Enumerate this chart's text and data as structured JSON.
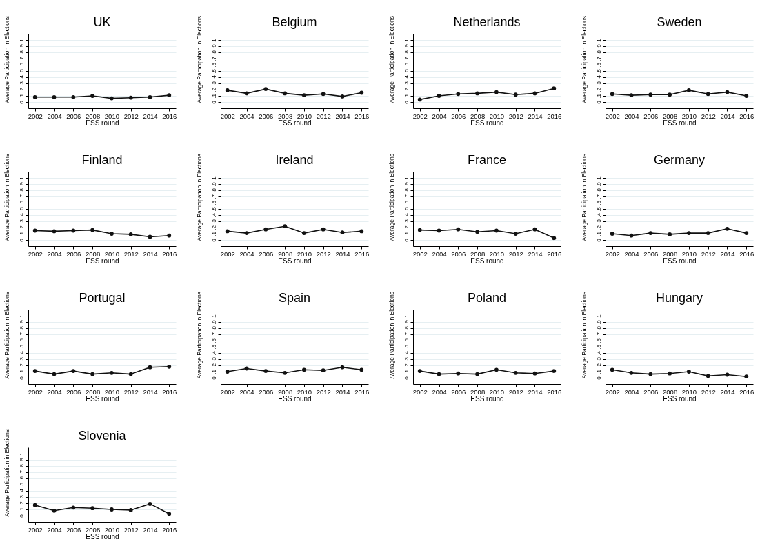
{
  "chart_data": [
    {
      "type": "line",
      "title": "UK",
      "xlabel": "ESS round",
      "ylabel": "Average Participation in Elections",
      "x": [
        2002,
        2004,
        2006,
        2008,
        2010,
        2012,
        2014,
        2016
      ],
      "series": [
        {
          "color": "#111111",
          "values": [
            0.08,
            0.08,
            0.08,
            0.1,
            0.06,
            0.07,
            0.08,
            0.11
          ]
        }
      ],
      "xlim": [
        2001.3,
        2016.7
      ],
      "ylim": [
        -0.1,
        1.1
      ],
      "xticks": [
        2002,
        2004,
        2006,
        2008,
        2010,
        2012,
        2014,
        2016
      ],
      "yticks": [
        0,
        {
          "value": 0.1,
          "label": ".1"
        },
        {
          "value": 0.2,
          "label": ".2"
        },
        {
          "value": 0.3,
          "label": ".3"
        },
        {
          "value": 0.4,
          "label": ".4"
        },
        {
          "value": 0.5,
          "label": ".5"
        },
        {
          "value": 0.6,
          "label": ".6"
        },
        {
          "value": 0.7,
          "label": ".7"
        },
        {
          "value": 0.8,
          "label": ".8"
        },
        {
          "value": 0.9,
          "label": ".9"
        },
        1
      ],
      "grid": "y",
      "marker": "circle",
      "line_style": "solid"
    },
    {
      "type": "line",
      "title": "Belgium",
      "xlabel": "ESS round",
      "ylabel": "Average Participation in Elections",
      "x": [
        2002,
        2004,
        2006,
        2008,
        2010,
        2012,
        2014,
        2016
      ],
      "series": [
        {
          "color": "#111111",
          "values": [
            0.19,
            0.14,
            0.21,
            0.14,
            0.11,
            0.13,
            0.09,
            0.15
          ]
        }
      ],
      "xlim": [
        2001.3,
        2016.7
      ],
      "ylim": [
        -0.1,
        1.1
      ],
      "xticks": [
        2002,
        2004,
        2006,
        2008,
        2010,
        2012,
        2014,
        2016
      ],
      "yticks": [
        0,
        {
          "value": 0.1,
          "label": ".1"
        },
        {
          "value": 0.2,
          "label": ".2"
        },
        {
          "value": 0.3,
          "label": ".3"
        },
        {
          "value": 0.4,
          "label": ".4"
        },
        {
          "value": 0.5,
          "label": ".5"
        },
        {
          "value": 0.6,
          "label": ".6"
        },
        {
          "value": 0.7,
          "label": ".7"
        },
        {
          "value": 0.8,
          "label": ".8"
        },
        {
          "value": 0.9,
          "label": ".9"
        },
        1
      ],
      "grid": "y",
      "marker": "circle",
      "line_style": "solid"
    },
    {
      "type": "line",
      "title": "Netherlands",
      "xlabel": "ESS round",
      "ylabel": "Average Participation in Elections",
      "x": [
        2002,
        2004,
        2006,
        2008,
        2010,
        2012,
        2014,
        2016
      ],
      "series": [
        {
          "color": "#111111",
          "values": [
            0.04,
            0.1,
            0.13,
            0.14,
            0.16,
            0.12,
            0.14,
            0.22
          ]
        }
      ],
      "xlim": [
        2001.3,
        2016.7
      ],
      "ylim": [
        -0.1,
        1.1
      ],
      "xticks": [
        2002,
        2004,
        2006,
        2008,
        2010,
        2012,
        2014,
        2016
      ],
      "yticks": [
        0,
        {
          "value": 0.1,
          "label": ".1"
        },
        {
          "value": 0.2,
          "label": ".2"
        },
        {
          "value": 0.3,
          "label": ".3"
        },
        {
          "value": 0.4,
          "label": ".4"
        },
        {
          "value": 0.5,
          "label": ".5"
        },
        {
          "value": 0.6,
          "label": ".6"
        },
        {
          "value": 0.7,
          "label": ".7"
        },
        {
          "value": 0.8,
          "label": ".8"
        },
        {
          "value": 0.9,
          "label": ".9"
        },
        1
      ],
      "grid": "y",
      "marker": "circle",
      "line_style": "solid"
    },
    {
      "type": "line",
      "title": "Sweden",
      "xlabel": "ESS round",
      "ylabel": "Average Participation in Elections",
      "x": [
        2002,
        2004,
        2006,
        2008,
        2010,
        2012,
        2014,
        2016
      ],
      "series": [
        {
          "color": "#111111",
          "values": [
            0.13,
            0.11,
            0.12,
            0.12,
            0.19,
            0.13,
            0.16,
            0.1
          ]
        }
      ],
      "xlim": [
        2001.3,
        2016.7
      ],
      "ylim": [
        -0.1,
        1.1
      ],
      "xticks": [
        2002,
        2004,
        2006,
        2008,
        2010,
        2012,
        2014,
        2016
      ],
      "yticks": [
        0,
        {
          "value": 0.1,
          "label": ".1"
        },
        {
          "value": 0.2,
          "label": ".2"
        },
        {
          "value": 0.3,
          "label": ".3"
        },
        {
          "value": 0.4,
          "label": ".4"
        },
        {
          "value": 0.5,
          "label": ".5"
        },
        {
          "value": 0.6,
          "label": ".6"
        },
        {
          "value": 0.7,
          "label": ".7"
        },
        {
          "value": 0.8,
          "label": ".8"
        },
        {
          "value": 0.9,
          "label": ".9"
        },
        1
      ],
      "grid": "y",
      "marker": "circle",
      "line_style": "solid"
    },
    {
      "type": "line",
      "title": "Finland",
      "xlabel": "ESS round",
      "ylabel": "Average Participation in Elections",
      "x": [
        2002,
        2004,
        2006,
        2008,
        2010,
        2012,
        2014,
        2016
      ],
      "series": [
        {
          "color": "#111111",
          "values": [
            0.15,
            0.14,
            0.15,
            0.16,
            0.1,
            0.09,
            0.05,
            0.07
          ]
        }
      ],
      "xlim": [
        2001.3,
        2016.7
      ],
      "ylim": [
        -0.1,
        1.1
      ],
      "xticks": [
        2002,
        2004,
        2006,
        2008,
        2010,
        2012,
        2014,
        2016
      ],
      "yticks": [
        0,
        {
          "value": 0.1,
          "label": ".1"
        },
        {
          "value": 0.2,
          "label": ".2"
        },
        {
          "value": 0.3,
          "label": ".3"
        },
        {
          "value": 0.4,
          "label": ".4"
        },
        {
          "value": 0.5,
          "label": ".5"
        },
        {
          "value": 0.6,
          "label": ".6"
        },
        {
          "value": 0.7,
          "label": ".7"
        },
        {
          "value": 0.8,
          "label": ".8"
        },
        {
          "value": 0.9,
          "label": ".9"
        },
        1
      ],
      "grid": "y",
      "marker": "circle",
      "line_style": "solid"
    },
    {
      "type": "line",
      "title": "Ireland",
      "xlabel": "ESS round",
      "ylabel": "Average Participation in Elections",
      "x": [
        2002,
        2004,
        2006,
        2008,
        2010,
        2012,
        2014,
        2016
      ],
      "series": [
        {
          "color": "#111111",
          "values": [
            0.14,
            0.11,
            0.17,
            0.22,
            0.11,
            0.17,
            0.12,
            0.14
          ]
        }
      ],
      "xlim": [
        2001.3,
        2016.7
      ],
      "ylim": [
        -0.1,
        1.1
      ],
      "xticks": [
        2002,
        2004,
        2006,
        2008,
        2010,
        2012,
        2014,
        2016
      ],
      "yticks": [
        0,
        {
          "value": 0.1,
          "label": ".1"
        },
        {
          "value": 0.2,
          "label": ".2"
        },
        {
          "value": 0.3,
          "label": ".3"
        },
        {
          "value": 0.4,
          "label": ".4"
        },
        {
          "value": 0.5,
          "label": ".5"
        },
        {
          "value": 0.6,
          "label": ".6"
        },
        {
          "value": 0.7,
          "label": ".7"
        },
        {
          "value": 0.8,
          "label": ".8"
        },
        {
          "value": 0.9,
          "label": ".9"
        },
        1
      ],
      "grid": "y",
      "marker": "circle",
      "line_style": "solid"
    },
    {
      "type": "line",
      "title": "France",
      "xlabel": "ESS round",
      "ylabel": "Average Participation in Elections",
      "x": [
        2002,
        2004,
        2006,
        2008,
        2010,
        2012,
        2014,
        2016
      ],
      "series": [
        {
          "color": "#111111",
          "values": [
            0.16,
            0.15,
            0.17,
            0.13,
            0.15,
            0.1,
            0.17,
            0.03
          ]
        }
      ],
      "xlim": [
        2001.3,
        2016.7
      ],
      "ylim": [
        -0.1,
        1.1
      ],
      "xticks": [
        2002,
        2004,
        2006,
        2008,
        2010,
        2012,
        2014,
        2016
      ],
      "yticks": [
        0,
        {
          "value": 0.1,
          "label": ".1"
        },
        {
          "value": 0.2,
          "label": ".2"
        },
        {
          "value": 0.3,
          "label": ".3"
        },
        {
          "value": 0.4,
          "label": ".4"
        },
        {
          "value": 0.5,
          "label": ".5"
        },
        {
          "value": 0.6,
          "label": ".6"
        },
        {
          "value": 0.7,
          "label": ".7"
        },
        {
          "value": 0.8,
          "label": ".8"
        },
        {
          "value": 0.9,
          "label": ".9"
        },
        1
      ],
      "grid": "y",
      "marker": "circle",
      "line_style": "solid"
    },
    {
      "type": "line",
      "title": "Germany",
      "xlabel": "ESS round",
      "ylabel": "Average Participation in Elections",
      "x": [
        2002,
        2004,
        2006,
        2008,
        2010,
        2012,
        2014,
        2016
      ],
      "series": [
        {
          "color": "#111111",
          "values": [
            0.1,
            0.07,
            0.11,
            0.09,
            0.11,
            0.11,
            0.18,
            0.11
          ]
        }
      ],
      "xlim": [
        2001.3,
        2016.7
      ],
      "ylim": [
        -0.1,
        1.1
      ],
      "xticks": [
        2002,
        2004,
        2006,
        2008,
        2010,
        2012,
        2014,
        2016
      ],
      "yticks": [
        0,
        {
          "value": 0.1,
          "label": ".1"
        },
        {
          "value": 0.2,
          "label": ".2"
        },
        {
          "value": 0.3,
          "label": ".3"
        },
        {
          "value": 0.4,
          "label": ".4"
        },
        {
          "value": 0.5,
          "label": ".5"
        },
        {
          "value": 0.6,
          "label": ".6"
        },
        {
          "value": 0.7,
          "label": ".7"
        },
        {
          "value": 0.8,
          "label": ".8"
        },
        {
          "value": 0.9,
          "label": ".9"
        },
        1
      ],
      "grid": "y",
      "marker": "circle",
      "line_style": "solid"
    },
    {
      "type": "line",
      "title": "Portugal",
      "xlabel": "ESS round",
      "ylabel": "Average Participation in Elections",
      "x": [
        2002,
        2004,
        2006,
        2008,
        2010,
        2012,
        2014,
        2016
      ],
      "series": [
        {
          "color": "#111111",
          "values": [
            0.11,
            0.06,
            0.11,
            0.06,
            0.08,
            0.06,
            0.17,
            0.18
          ]
        }
      ],
      "xlim": [
        2001.3,
        2016.7
      ],
      "ylim": [
        -0.1,
        1.1
      ],
      "xticks": [
        2002,
        2004,
        2006,
        2008,
        2010,
        2012,
        2014,
        2016
      ],
      "yticks": [
        0,
        {
          "value": 0.1,
          "label": ".1"
        },
        {
          "value": 0.2,
          "label": ".2"
        },
        {
          "value": 0.3,
          "label": ".3"
        },
        {
          "value": 0.4,
          "label": ".4"
        },
        {
          "value": 0.5,
          "label": ".5"
        },
        {
          "value": 0.6,
          "label": ".6"
        },
        {
          "value": 0.7,
          "label": ".7"
        },
        {
          "value": 0.8,
          "label": ".8"
        },
        {
          "value": 0.9,
          "label": ".9"
        },
        1
      ],
      "grid": "y",
      "marker": "circle",
      "line_style": "solid"
    },
    {
      "type": "line",
      "title": "Spain",
      "xlabel": "ESS round",
      "ylabel": "Average Participation in Elections",
      "x": [
        2002,
        2004,
        2006,
        2008,
        2010,
        2012,
        2014,
        2016
      ],
      "series": [
        {
          "color": "#111111",
          "values": [
            0.1,
            0.15,
            0.11,
            0.08,
            0.13,
            0.12,
            0.17,
            0.13
          ]
        }
      ],
      "xlim": [
        2001.3,
        2016.7
      ],
      "ylim": [
        -0.1,
        1.1
      ],
      "xticks": [
        2002,
        2004,
        2006,
        2008,
        2010,
        2012,
        2014,
        2016
      ],
      "yticks": [
        0,
        {
          "value": 0.1,
          "label": ".1"
        },
        {
          "value": 0.2,
          "label": ".2"
        },
        {
          "value": 0.3,
          "label": ".3"
        },
        {
          "value": 0.4,
          "label": ".4"
        },
        {
          "value": 0.5,
          "label": ".5"
        },
        {
          "value": 0.6,
          "label": ".6"
        },
        {
          "value": 0.7,
          "label": ".7"
        },
        {
          "value": 0.8,
          "label": ".8"
        },
        {
          "value": 0.9,
          "label": ".9"
        },
        1
      ],
      "grid": "y",
      "marker": "circle",
      "line_style": "solid"
    },
    {
      "type": "line",
      "title": "Poland",
      "xlabel": "ESS round",
      "ylabel": "Average Participation in Elections",
      "x": [
        2002,
        2004,
        2006,
        2008,
        2010,
        2012,
        2014,
        2016
      ],
      "series": [
        {
          "color": "#111111",
          "values": [
            0.11,
            0.06,
            0.07,
            0.06,
            0.13,
            0.08,
            0.07,
            0.11
          ]
        }
      ],
      "xlim": [
        2001.3,
        2016.7
      ],
      "ylim": [
        -0.1,
        1.1
      ],
      "xticks": [
        2002,
        2004,
        2006,
        2008,
        2010,
        2012,
        2014,
        2016
      ],
      "yticks": [
        0,
        {
          "value": 0.1,
          "label": ".1"
        },
        {
          "value": 0.2,
          "label": ".2"
        },
        {
          "value": 0.3,
          "label": ".3"
        },
        {
          "value": 0.4,
          "label": ".4"
        },
        {
          "value": 0.5,
          "label": ".5"
        },
        {
          "value": 0.6,
          "label": ".6"
        },
        {
          "value": 0.7,
          "label": ".7"
        },
        {
          "value": 0.8,
          "label": ".8"
        },
        {
          "value": 0.9,
          "label": ".9"
        },
        1
      ],
      "grid": "y",
      "marker": "circle",
      "line_style": "solid"
    },
    {
      "type": "line",
      "title": "Hungary",
      "xlabel": "ESS round",
      "ylabel": "Average Participation in Elections",
      "x": [
        2002,
        2004,
        2006,
        2008,
        2010,
        2012,
        2014,
        2016
      ],
      "series": [
        {
          "color": "#111111",
          "values": [
            0.13,
            0.08,
            0.06,
            0.07,
            0.1,
            0.03,
            0.05,
            0.02
          ]
        }
      ],
      "xlim": [
        2001.3,
        2016.7
      ],
      "ylim": [
        -0.1,
        1.1
      ],
      "xticks": [
        2002,
        2004,
        2006,
        2008,
        2010,
        2012,
        2014,
        2016
      ],
      "yticks": [
        0,
        {
          "value": 0.1,
          "label": ".1"
        },
        {
          "value": 0.2,
          "label": ".2"
        },
        {
          "value": 0.3,
          "label": ".3"
        },
        {
          "value": 0.4,
          "label": ".4"
        },
        {
          "value": 0.5,
          "label": ".5"
        },
        {
          "value": 0.6,
          "label": ".6"
        },
        {
          "value": 0.7,
          "label": ".7"
        },
        {
          "value": 0.8,
          "label": ".8"
        },
        {
          "value": 0.9,
          "label": ".9"
        },
        1
      ],
      "grid": "y",
      "marker": "circle",
      "line_style": "solid"
    },
    {
      "type": "line",
      "title": "Slovenia",
      "xlabel": "ESS round",
      "ylabel": "Average Participation in Elections",
      "x": [
        2002,
        2004,
        2006,
        2008,
        2010,
        2012,
        2014,
        2016
      ],
      "series": [
        {
          "color": "#111111",
          "values": [
            0.17,
            0.08,
            0.13,
            0.12,
            0.1,
            0.09,
            0.19,
            0.03
          ]
        }
      ],
      "xlim": [
        2001.3,
        2016.7
      ],
      "ylim": [
        -0.1,
        1.1
      ],
      "xticks": [
        2002,
        2004,
        2006,
        2008,
        2010,
        2012,
        2014,
        2016
      ],
      "yticks": [
        0,
        {
          "value": 0.1,
          "label": ".1"
        },
        {
          "value": 0.2,
          "label": ".2"
        },
        {
          "value": 0.3,
          "label": ".3"
        },
        {
          "value": 0.4,
          "label": ".4"
        },
        {
          "value": 0.5,
          "label": ".5"
        },
        {
          "value": 0.6,
          "label": ".6"
        },
        {
          "value": 0.7,
          "label": ".7"
        },
        {
          "value": 0.8,
          "label": ".8"
        },
        {
          "value": 0.9,
          "label": ".9"
        },
        1
      ],
      "grid": "y",
      "marker": "circle",
      "line_style": "solid"
    }
  ]
}
